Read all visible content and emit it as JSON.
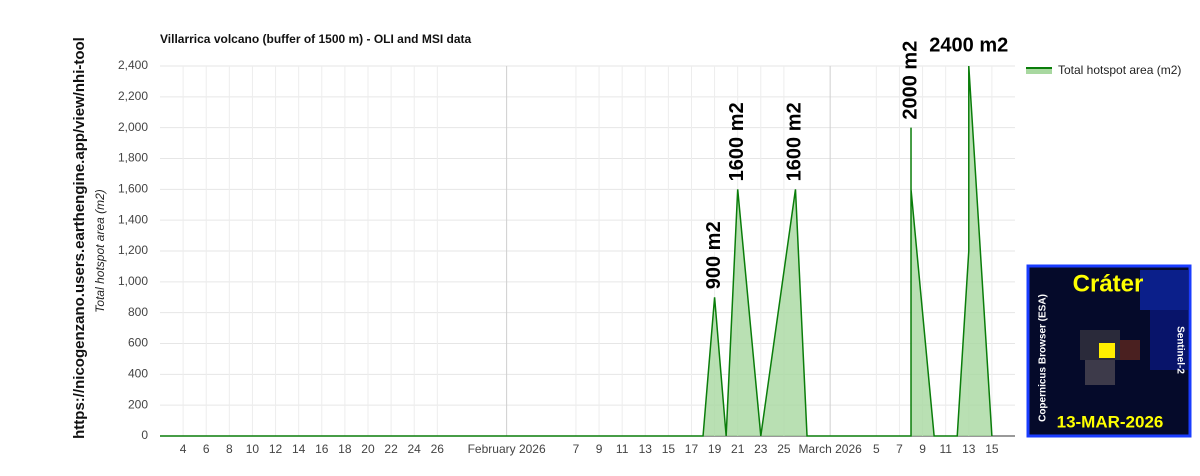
{
  "side_text": "https://nicogenzano.users.earthengine.app/view/nhi-tool",
  "chart_data": {
    "type": "area",
    "title": "Villarrica volcano (buffer of 1500 m) - OLI and MSI data",
    "y_label": "Total hotspot area (m2)",
    "x": [
      "2026-01-02",
      "2026-02-18",
      "2026-02-19",
      "2026-02-20",
      "2026-02-21",
      "2026-02-23",
      "2026-02-26",
      "2026-02-27",
      "2026-03-08",
      "2026-03-08",
      "2026-03-08",
      "2026-03-10",
      "2026-03-12",
      "2026-03-13",
      "2026-03-13",
      "2026-03-15"
    ],
    "series": [
      {
        "name": "Total hotspot area (m2)",
        "color": "#0a7d0a",
        "fill": "#a8d8a0",
        "values": [
          0,
          0,
          900,
          0,
          1600,
          0,
          1600,
          0,
          0,
          2000,
          1600,
          0,
          0,
          1200,
          2400,
          0
        ]
      }
    ],
    "xlim": [
      "2026-01-02",
      "2026-03-17"
    ],
    "xticks": [
      {
        "value": "2026-01-04",
        "label": "4"
      },
      {
        "value": "2026-01-06",
        "label": "6"
      },
      {
        "value": "2026-01-08",
        "label": "8"
      },
      {
        "value": "2026-01-10",
        "label": "10"
      },
      {
        "value": "2026-01-12",
        "label": "12"
      },
      {
        "value": "2026-01-14",
        "label": "14"
      },
      {
        "value": "2026-01-16",
        "label": "16"
      },
      {
        "value": "2026-01-18",
        "label": "18"
      },
      {
        "value": "2026-01-20",
        "label": "20"
      },
      {
        "value": "2026-01-22",
        "label": "22"
      },
      {
        "value": "2026-01-24",
        "label": "24"
      },
      {
        "value": "2026-01-26",
        "label": "26"
      },
      {
        "value": "2026-02-01",
        "label": "February 2026"
      },
      {
        "value": "2026-02-07",
        "label": "7"
      },
      {
        "value": "2026-02-09",
        "label": "9"
      },
      {
        "value": "2026-02-11",
        "label": "11"
      },
      {
        "value": "2026-02-13",
        "label": "13"
      },
      {
        "value": "2026-02-15",
        "label": "15"
      },
      {
        "value": "2026-02-17",
        "label": "17"
      },
      {
        "value": "2026-02-19",
        "label": "19"
      },
      {
        "value": "2026-02-21",
        "label": "21"
      },
      {
        "value": "2026-02-23",
        "label": "23"
      },
      {
        "value": "2026-02-25",
        "label": "25"
      },
      {
        "value": "2026-03-01",
        "label": "March 2026"
      },
      {
        "value": "2026-03-05",
        "label": "5"
      },
      {
        "value": "2026-03-07",
        "label": "7"
      },
      {
        "value": "2026-03-09",
        "label": "9"
      },
      {
        "value": "2026-03-11",
        "label": "11"
      },
      {
        "value": "2026-03-13",
        "label": "13"
      },
      {
        "value": "2026-03-15",
        "label": "15"
      }
    ],
    "ylim": [
      0,
      2400
    ],
    "yticks": [
      0,
      200,
      400,
      600,
      800,
      {
        "value": 1000,
        "label": "1,000"
      },
      {
        "value": 1200,
        "label": "1,200"
      },
      {
        "value": 1400,
        "label": "1,400"
      },
      {
        "value": 1600,
        "label": "1,600"
      },
      {
        "value": 1800,
        "label": "1,800"
      },
      {
        "value": 2000,
        "label": "2,000"
      },
      {
        "value": 2200,
        "label": "2,200"
      },
      {
        "value": 2400,
        "label": "2,400"
      }
    ],
    "grid": true,
    "legend": "top-right",
    "annotations": [
      {
        "text": "900 m2",
        "x": "2026-02-19",
        "y": 900
      },
      {
        "text": "1600 m2",
        "x": "2026-02-21",
        "y": 1600
      },
      {
        "text": "1600 m2",
        "x": "2026-02-26",
        "y": 1600
      },
      {
        "text": "2000 m2",
        "x": "2026-03-08",
        "y": 2000
      },
      {
        "text": "2400 m2",
        "x": "2026-03-13",
        "y": 2400
      }
    ]
  },
  "inset": {
    "title": "Cráter",
    "left_label": "Copernicus Browser (ESA)",
    "right_label": "Sentinel-2",
    "date": "13-MAR-2026"
  }
}
